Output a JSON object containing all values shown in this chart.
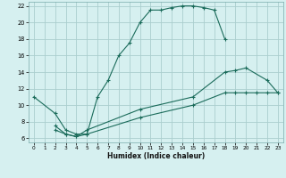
{
  "title": "",
  "xlabel": "Humidex (Indice chaleur)",
  "bg_color": "#d6f0f0",
  "grid_color": "#aacece",
  "line_color": "#1a6b5a",
  "xlim": [
    -0.5,
    23.5
  ],
  "ylim": [
    5.5,
    22.5
  ],
  "xticks": [
    0,
    1,
    2,
    3,
    4,
    5,
    6,
    7,
    8,
    9,
    10,
    11,
    12,
    13,
    14,
    15,
    16,
    17,
    18,
    19,
    20,
    21,
    22,
    23
  ],
  "yticks": [
    6,
    8,
    10,
    12,
    14,
    16,
    18,
    20,
    22
  ],
  "curve1_x": [
    0,
    2,
    3,
    4,
    5,
    6,
    7,
    8,
    9,
    10,
    11,
    12,
    13,
    14,
    15,
    16,
    17,
    18
  ],
  "curve1_y": [
    11,
    9,
    7,
    6.5,
    6.5,
    11,
    13,
    16,
    17.5,
    20,
    21.5,
    21.5,
    21.8,
    22,
    22,
    21.8,
    21.5,
    18
  ],
  "curve2_x": [
    2,
    3,
    4,
    5,
    10,
    15,
    18,
    19,
    20,
    21,
    22,
    23
  ],
  "curve2_y": [
    7,
    6.5,
    6.2,
    6.5,
    8.5,
    10,
    11.5,
    11.5,
    11.5,
    11.5,
    11.5,
    11.5
  ],
  "curve3_x": [
    2,
    3,
    4,
    5,
    10,
    15,
    18,
    19,
    20,
    22,
    23
  ],
  "curve3_y": [
    7.5,
    6.5,
    6.2,
    7,
    9.5,
    11,
    14,
    14.2,
    14.5,
    13,
    11.5
  ]
}
